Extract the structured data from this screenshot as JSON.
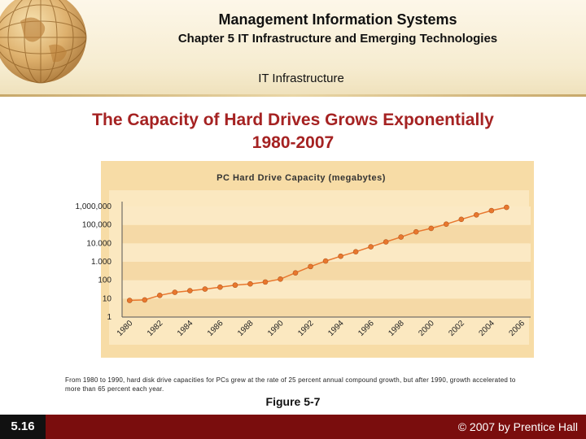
{
  "header": {
    "title": "Management Information Systems",
    "subtitle": "Chapter 5 IT Infrastructure and Emerging Technologies",
    "section": "IT Infrastructure"
  },
  "slide": {
    "title_line1": "The Capacity of Hard Drives Grows Exponentially",
    "title_line2": "1980-2007"
  },
  "chart_data": {
    "type": "line",
    "title": "PC  Hard  Drive  Capacity  (megabytes)",
    "xlabel": "",
    "ylabel": "",
    "y_scale": "log",
    "ylim": [
      1,
      1000000
    ],
    "yticks": [
      {
        "value": 1,
        "label": "1"
      },
      {
        "value": 10,
        "label": "10"
      },
      {
        "value": 100,
        "label": "100"
      },
      {
        "value": 1000,
        "label": "1.000"
      },
      {
        "value": 10000,
        "label": "10.000"
      },
      {
        "value": 100000,
        "label": "100,000"
      },
      {
        "value": 1000000,
        "label": "1,000,000"
      }
    ],
    "xticks": [
      "1980",
      "1982",
      "1984",
      "1986",
      "1988",
      "1990",
      "1992",
      "1994",
      "1996",
      "1998",
      "2000",
      "2002",
      "2004",
      "2006"
    ],
    "series": [
      {
        "name": "PC Hard Drive Capacity",
        "color": "#e8772e",
        "points": [
          {
            "x": 1980,
            "y": 8
          },
          {
            "x": 1981,
            "y": 8.5
          },
          {
            "x": 1982,
            "y": 15
          },
          {
            "x": 1983,
            "y": 22
          },
          {
            "x": 1984,
            "y": 27
          },
          {
            "x": 1985,
            "y": 33
          },
          {
            "x": 1986,
            "y": 42
          },
          {
            "x": 1987,
            "y": 54
          },
          {
            "x": 1988,
            "y": 63
          },
          {
            "x": 1989,
            "y": 80
          },
          {
            "x": 1990,
            "y": 115
          },
          {
            "x": 1991,
            "y": 250
          },
          {
            "x": 1992,
            "y": 550
          },
          {
            "x": 1993,
            "y": 1100
          },
          {
            "x": 1994,
            "y": 2000
          },
          {
            "x": 1995,
            "y": 3500
          },
          {
            "x": 1996,
            "y": 6500
          },
          {
            "x": 1997,
            "y": 12000
          },
          {
            "x": 1998,
            "y": 22000
          },
          {
            "x": 1999,
            "y": 42000
          },
          {
            "x": 2000,
            "y": 65000
          },
          {
            "x": 2001,
            "y": 110000
          },
          {
            "x": 2002,
            "y": 200000
          },
          {
            "x": 2003,
            "y": 350000
          },
          {
            "x": 2004,
            "y": 600000
          },
          {
            "x": 2005,
            "y": 900000
          }
        ]
      }
    ],
    "colors": {
      "plot_bg": "#fbe8c0",
      "band_a": "#fbe9c4",
      "band_b": "#f5d9a6",
      "frame": "#f7dca6",
      "axis": "#555555"
    }
  },
  "caption": "From 1980 to 1990, hard disk drive capacities for PCs grew at the rate of 25 percent annual compound growth, but after 1990, growth accelerated to more than 65 percent each year.",
  "figure_label": "Figure 5-7",
  "footer": {
    "slide_number": "5.16",
    "copyright": "© 2007 by Prentice Hall"
  },
  "icons": {
    "globe": "globe-icon"
  }
}
